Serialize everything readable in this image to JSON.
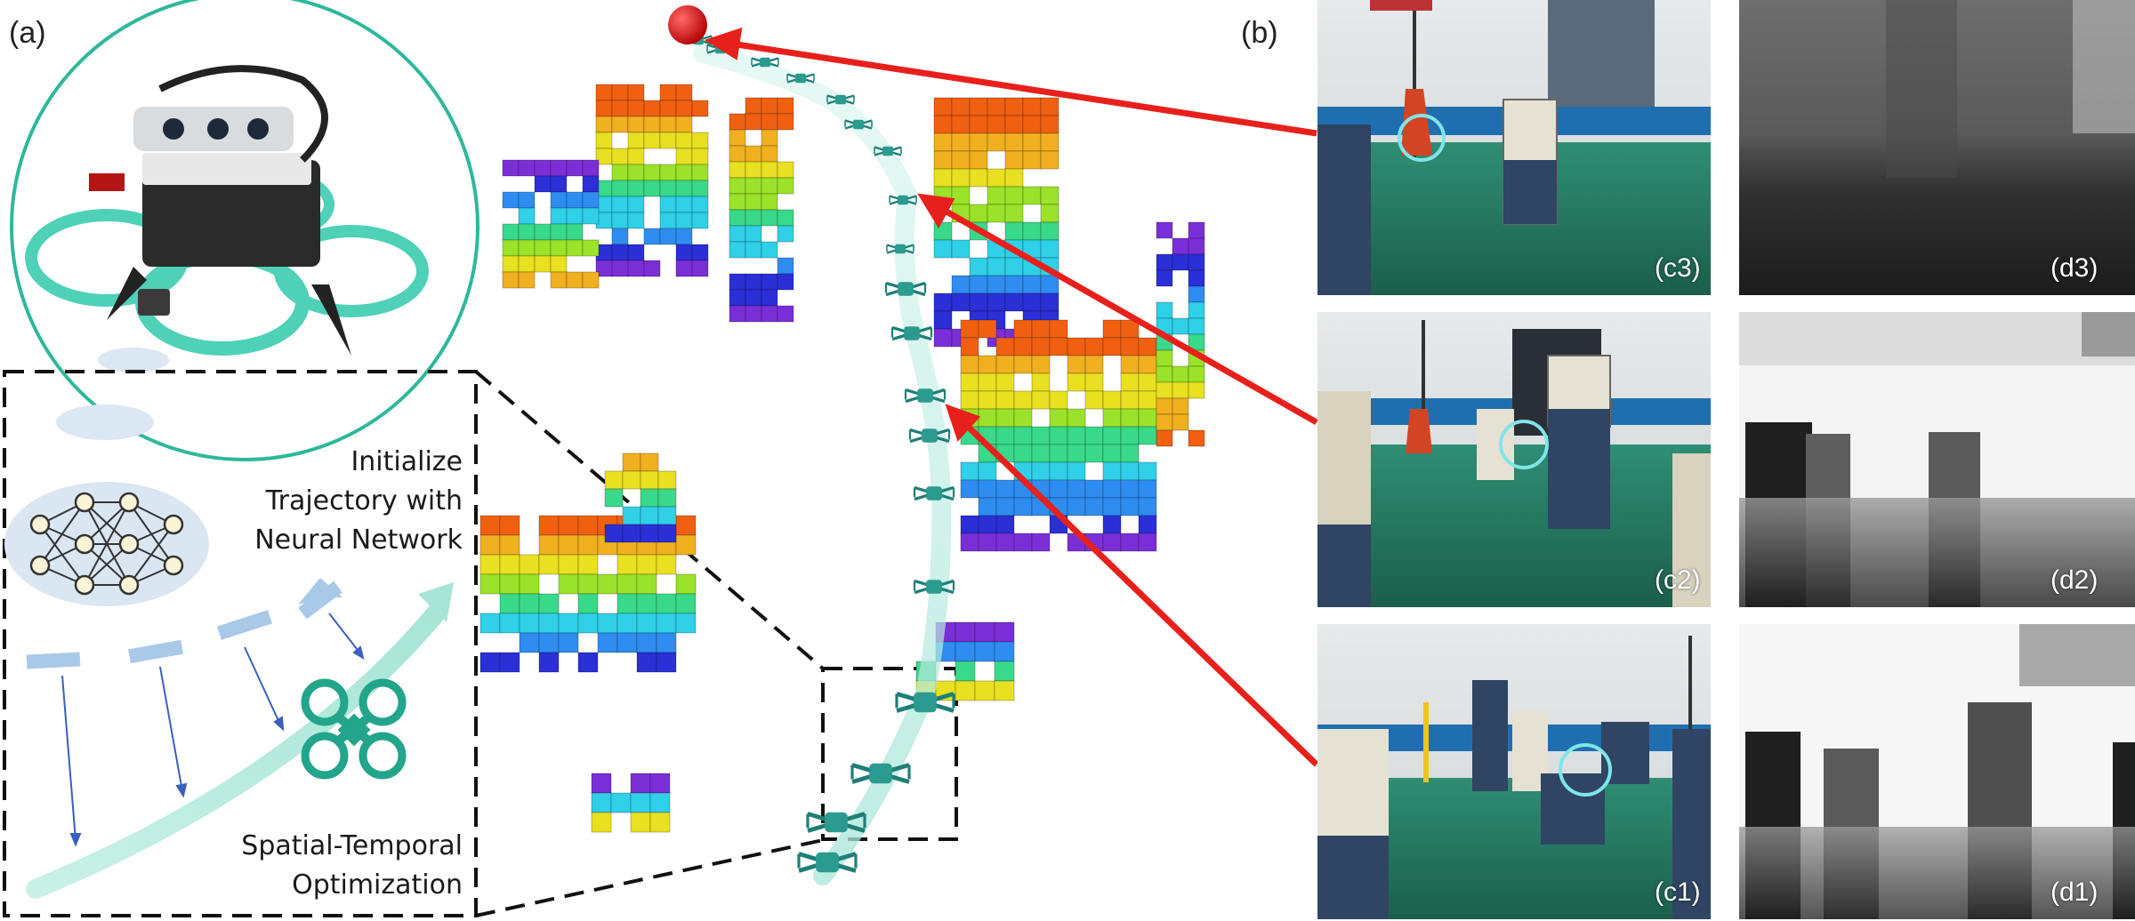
{
  "panel_labels": {
    "a": "(a)",
    "b": "(b)"
  },
  "texts": {
    "init_line1": "Initialize",
    "init_line2": "Trajectory with",
    "init_line3": "Neural Network",
    "opt_line1": "Spatial-Temporal",
    "opt_line2": "Optimization"
  },
  "photos": [
    {
      "tag": "(c3)"
    },
    {
      "tag": "(c2)"
    },
    {
      "tag": "(c1)"
    }
  ],
  "depths": [
    {
      "tag": "(d3)"
    },
    {
      "tag": "(d2)"
    },
    {
      "tag": "(d1)"
    }
  ],
  "colors": {
    "drone_teal": "#2fbfa0",
    "trajectory": "#b9ece3",
    "arrow_red": "#e8201b",
    "goal_red": "#d81010",
    "dashed_box": "#111111"
  }
}
